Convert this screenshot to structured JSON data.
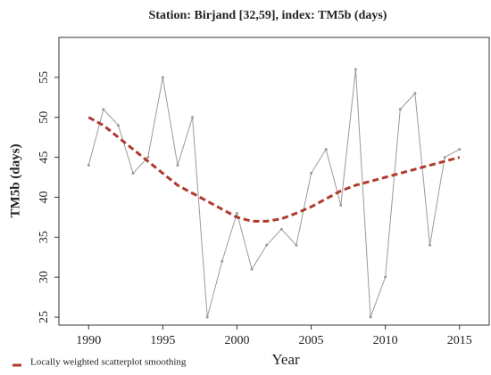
{
  "chart_data": {
    "type": "line",
    "title": "Station: Birjand [32,59], index: TM5b (days)",
    "x_label": "Year",
    "y_label": "TM5b (days)",
    "x": [
      1990,
      1991,
      1992,
      1993,
      1994,
      1995,
      1996,
      1997,
      1998,
      1999,
      2000,
      2001,
      2002,
      2003,
      2004,
      2005,
      2006,
      2007,
      2008,
      2009,
      2010,
      2011,
      2012,
      2013,
      2014,
      2015
    ],
    "series": [
      {
        "color": "#9a9a9a",
        "values": [
          44,
          51,
          49,
          43,
          45,
          55,
          44,
          50,
          25,
          32,
          38,
          31,
          34,
          36,
          34,
          43,
          46,
          39,
          56,
          25,
          30,
          51,
          53,
          34,
          45,
          46
        ]
      },
      {
        "name": "Locally weighted scatterplot smoothing",
        "color": "#b03a2e",
        "dashed": true,
        "values": [
          50,
          49,
          47.5,
          46,
          44.5,
          43,
          41.5,
          40.5,
          39.5,
          38.5,
          37.5,
          37,
          37,
          37.3,
          38,
          38.8,
          39.8,
          40.8,
          41.5,
          42,
          42.5,
          43,
          43.5,
          44,
          44.5,
          45
        ]
      }
    ],
    "xlim": [
      1988,
      2017
    ],
    "ylim": [
      24,
      60
    ],
    "xticks": [
      1990,
      1995,
      2000,
      2005,
      2010,
      2015
    ],
    "yticks": [
      25,
      30,
      35,
      40,
      45,
      50,
      55
    ],
    "legend": "bottom-left"
  }
}
